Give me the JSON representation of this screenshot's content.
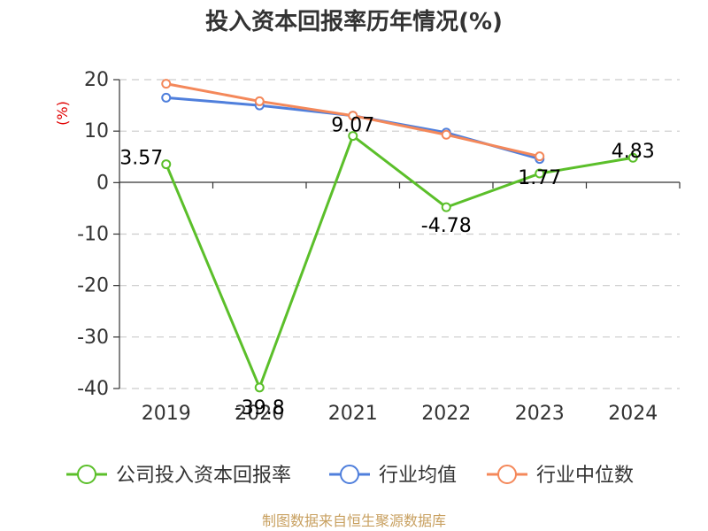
{
  "chart_data": {
    "type": "line",
    "title": "投入资本回报率历年情况(%)",
    "unit_label": "(%)",
    "categories": [
      "2019",
      "2020",
      "2021",
      "2022",
      "2023",
      "2024"
    ],
    "ylim": [
      -40,
      20
    ],
    "yticks": [
      "20",
      "10",
      "0",
      "-10",
      "-20",
      "-30",
      "-40"
    ],
    "grid": true,
    "legend_position": "bottom",
    "series": [
      {
        "name": "公司投入资本回报率",
        "values": [
          3.57,
          -39.8,
          9.07,
          -4.78,
          1.77,
          4.83
        ],
        "labels": [
          "3.57",
          "-39.8",
          "9.07",
          "-4.78",
          "1.77",
          "4.83"
        ],
        "color": "#5bbf2a"
      },
      {
        "name": "行业均值",
        "values": [
          16.5,
          15.0,
          13.0,
          9.7,
          4.6,
          null
        ],
        "color": "#4f7fdc"
      },
      {
        "name": "行业中位数",
        "values": [
          19.2,
          15.8,
          13.0,
          9.3,
          5.1,
          null
        ],
        "color": "#f4885a"
      }
    ],
    "source": "制图数据来自恒生聚源数据库"
  }
}
